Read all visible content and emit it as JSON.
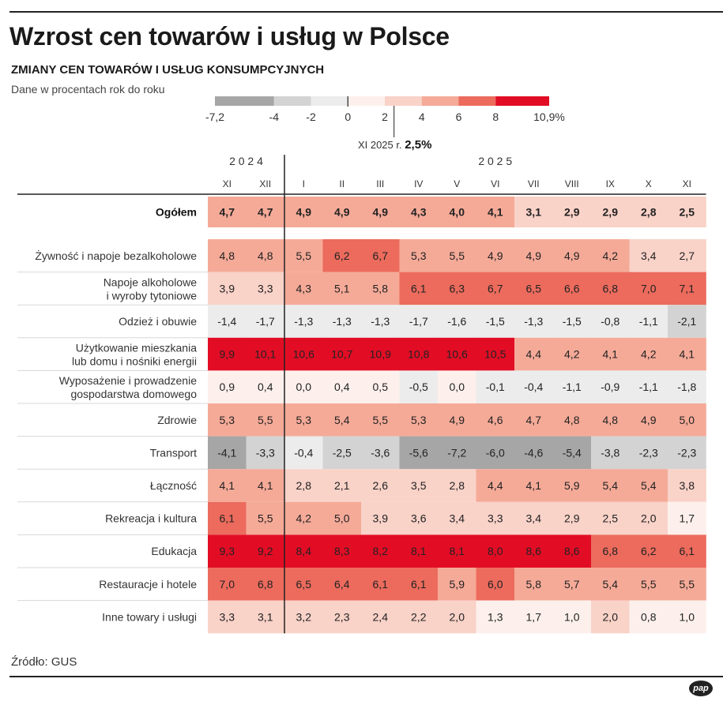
{
  "title": "Wzrost cen towarów i usług w Polsce",
  "subtitle": "ZMIANY CEN TOWARÓW I USŁUG KONSUMPCYJNYCH",
  "unit_note": "Dane w procentach rok do roku",
  "source": "Źródło: GUS",
  "logo": "pap",
  "chart_data": {
    "type": "heatmap",
    "legend": {
      "thresholds": [
        -7.2,
        -4,
        -2,
        0,
        2,
        4,
        6,
        8,
        10.9
      ],
      "tick_labels": [
        "-7,2",
        "-4",
        "-2",
        "0",
        "2",
        "4",
        "6",
        "8",
        "10,9%"
      ],
      "colors": [
        "#a6a6a6",
        "#d3d3d3",
        "#ececec",
        "#fdf0ec",
        "#f9d2c8",
        "#f5aa98",
        "#ec6b5d",
        "#e20d25"
      ],
      "marker": {
        "value": 2.5,
        "label_prefix": "XI 2025 r.",
        "label_value": "2,5%"
      }
    },
    "years": [
      {
        "label": "2 0 2 4",
        "months": [
          "XI",
          "XII"
        ]
      },
      {
        "label": "2 0 2 5",
        "months": [
          "I",
          "II",
          "III",
          "IV",
          "V",
          "VI",
          "VII",
          "VIII",
          "IX",
          "X",
          "XI"
        ]
      }
    ],
    "columns": [
      "XI",
      "XII",
      "I",
      "II",
      "III",
      "IV",
      "V",
      "VI",
      "VII",
      "VIII",
      "IX",
      "X",
      "XI"
    ],
    "total": {
      "label": "Ogółem",
      "values": [
        4.7,
        4.7,
        4.9,
        4.9,
        4.9,
        4.3,
        4.0,
        4.1,
        3.1,
        2.9,
        2.9,
        2.8,
        2.5
      ]
    },
    "rows": [
      {
        "label": [
          "Żywność i napoje bezalkoholowe"
        ],
        "values": [
          4.8,
          4.8,
          5.5,
          6.2,
          6.7,
          5.3,
          5.5,
          4.9,
          4.9,
          4.9,
          4.2,
          3.4,
          2.7
        ]
      },
      {
        "label": [
          "Napoje alkoholowe",
          "i wyroby tytoniowe"
        ],
        "values": [
          3.9,
          3.3,
          4.3,
          5.1,
          5.8,
          6.1,
          6.3,
          6.7,
          6.5,
          6.6,
          6.8,
          7.0,
          7.1
        ]
      },
      {
        "label": [
          "Odzież i obuwie"
        ],
        "values": [
          -1.4,
          -1.7,
          -1.3,
          -1.3,
          -1.3,
          -1.7,
          -1.6,
          -1.5,
          -1.3,
          -1.5,
          -0.8,
          -1.1,
          -2.1
        ]
      },
      {
        "label": [
          "Użytkowanie mieszkania",
          "lub domu i nośniki energii"
        ],
        "values": [
          9.9,
          10.1,
          10.6,
          10.7,
          10.9,
          10.8,
          10.6,
          10.5,
          4.4,
          4.2,
          4.1,
          4.2,
          4.1
        ]
      },
      {
        "label": [
          "Wyposażenie i prowadzenie",
          "gospodarstwa domowego"
        ],
        "values": [
          0.9,
          0.4,
          0.0,
          0.4,
          0.5,
          -0.5,
          0.0,
          -0.1,
          -0.4,
          -1.1,
          -0.9,
          -1.1,
          -1.8
        ]
      },
      {
        "label": [
          "Zdrowie"
        ],
        "values": [
          5.3,
          5.5,
          5.3,
          5.4,
          5.5,
          5.3,
          4.9,
          4.6,
          4.7,
          4.8,
          4.8,
          4.9,
          5.0
        ]
      },
      {
        "label": [
          "Transport"
        ],
        "values": [
          -4.1,
          -3.3,
          -0.4,
          -2.5,
          -3.6,
          -5.6,
          -7.2,
          -6.0,
          -4.6,
          -5.4,
          -3.8,
          -2.3,
          -2.3
        ]
      },
      {
        "label": [
          "Łączność"
        ],
        "values": [
          4.1,
          4.1,
          2.8,
          2.1,
          2.6,
          3.5,
          2.8,
          4.4,
          4.1,
          5.9,
          5.4,
          5.4,
          3.8
        ]
      },
      {
        "label": [
          "Rekreacja i kultura"
        ],
        "values": [
          6.1,
          5.5,
          4.2,
          5.0,
          3.9,
          3.6,
          3.4,
          3.3,
          3.4,
          2.9,
          2.5,
          2.0,
          1.7
        ]
      },
      {
        "label": [
          "Edukacja"
        ],
        "values": [
          9.3,
          9.2,
          8.4,
          8.3,
          8.2,
          8.1,
          8.1,
          8.0,
          8.6,
          8.6,
          6.8,
          6.2,
          6.1
        ]
      },
      {
        "label": [
          "Restauracje i hotele"
        ],
        "values": [
          7.0,
          6.8,
          6.5,
          6.4,
          6.1,
          6.1,
          5.9,
          6.0,
          5.8,
          5.7,
          5.4,
          5.5,
          5.5
        ]
      },
      {
        "label": [
          "Inne towary i usługi"
        ],
        "values": [
          3.3,
          3.1,
          3.2,
          2.3,
          2.4,
          2.2,
          2.0,
          1.3,
          1.7,
          1.0,
          2.0,
          0.8,
          1.0
        ]
      }
    ]
  }
}
